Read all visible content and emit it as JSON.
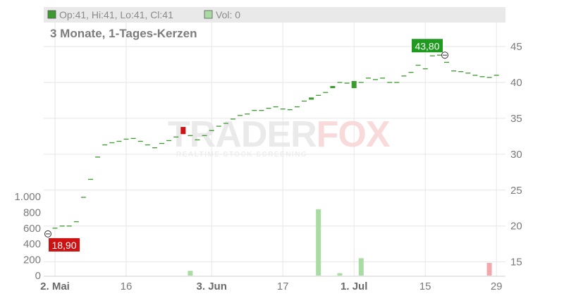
{
  "legend": {
    "ohlc_text": "Op:41, Hi:41, Lo:41, Cl:41",
    "vol_text": "Vol: 0",
    "ohlc_color": "#3c9a2e",
    "vol_color": "#a9dca2"
  },
  "watermark": {
    "part1": "TRADER",
    "part2": "FOX",
    "sub": "REALTIME STOCK SCREENING"
  },
  "chart_data": {
    "type": "candlestick",
    "subtitle": "3 Monate, 1-Tages-Kerzen",
    "price_axis": {
      "ticks": [
        15,
        20,
        25,
        30,
        35,
        40,
        45
      ],
      "labels": [
        "15",
        "20",
        "25",
        "30",
        "35",
        "40",
        "45"
      ],
      "range": [
        13,
        50.5
      ]
    },
    "volume_axis": {
      "ticks": [
        0,
        200,
        400,
        600,
        800,
        1000
      ],
      "labels": [
        "0",
        "200",
        "400",
        "600",
        "800",
        "1.000"
      ],
      "range": [
        0,
        1000
      ]
    },
    "x_labels": [
      {
        "text": "2. Mai",
        "i": 0,
        "bold": true
      },
      {
        "text": "16",
        "i": 10,
        "bold": false
      },
      {
        "text": "3. Jun",
        "i": 22,
        "bold": true
      },
      {
        "text": "17",
        "i": 32,
        "bold": false
      },
      {
        "text": "1. Jul",
        "i": 42,
        "bold": true
      },
      {
        "text": "15",
        "i": 52,
        "bold": false
      },
      {
        "text": "29",
        "i": 62,
        "bold": false
      }
    ],
    "candles": [
      {
        "o": 19.7,
        "c": 19.7
      },
      {
        "o": 20.0,
        "c": 20.0
      },
      {
        "o": 20.0,
        "c": 20.0
      },
      {
        "o": 20.6,
        "c": 20.6
      },
      {
        "o": 24.0,
        "c": 24.0
      },
      {
        "o": 26.5,
        "c": 26.5
      },
      {
        "o": 29.6,
        "c": 29.6
      },
      {
        "o": 31.3,
        "c": 31.3
      },
      {
        "o": 31.6,
        "c": 31.6
      },
      {
        "o": 31.8,
        "c": 31.8
      },
      {
        "o": 32.1,
        "c": 32.1
      },
      {
        "o": 32.2,
        "c": 32.2
      },
      {
        "o": 31.8,
        "c": 31.8
      },
      {
        "o": 31.3,
        "c": 31.3
      },
      {
        "o": 30.9,
        "c": 30.9
      },
      {
        "o": 31.5,
        "c": 31.5
      },
      {
        "o": 31.9,
        "c": 31.9
      },
      {
        "o": 32.4,
        "c": 32.4
      },
      {
        "o": 33.8,
        "c": 32.8
      },
      {
        "o": 32.6,
        "c": 32.6
      },
      {
        "o": 32.0,
        "c": 32.0
      },
      {
        "o": 32.6,
        "c": 32.6
      },
      {
        "o": 33.3,
        "c": 33.3
      },
      {
        "o": 33.9,
        "c": 33.9
      },
      {
        "o": 34.3,
        "c": 34.3
      },
      {
        "o": 34.9,
        "c": 34.9
      },
      {
        "o": 35.4,
        "c": 35.4
      },
      {
        "o": 35.6,
        "c": 35.6
      },
      {
        "o": 36.1,
        "c": 36.1
      },
      {
        "o": 36.1,
        "c": 36.1
      },
      {
        "o": 36.4,
        "c": 36.4
      },
      {
        "o": 36.6,
        "c": 36.6
      },
      {
        "o": 36.3,
        "c": 36.3
      },
      {
        "o": 36.2,
        "c": 36.2
      },
      {
        "o": 36.6,
        "c": 36.6
      },
      {
        "o": 37.4,
        "c": 37.4
      },
      {
        "o": 37.6,
        "c": 37.9
      },
      {
        "o": 38.2,
        "c": 38.2
      },
      {
        "o": 38.6,
        "c": 38.6
      },
      {
        "o": 39.2,
        "c": 39.5
      },
      {
        "o": 40.0,
        "c": 40.0
      },
      {
        "o": 39.9,
        "c": 39.9
      },
      {
        "o": 39.2,
        "c": 40.2
      },
      {
        "o": 40.0,
        "c": 40.0
      },
      {
        "o": 40.6,
        "c": 40.6
      },
      {
        "o": 40.4,
        "c": 40.4
      },
      {
        "o": 40.6,
        "c": 40.6
      },
      {
        "o": 40.0,
        "c": 40.0
      },
      {
        "o": 40.0,
        "c": 40.0
      },
      {
        "o": 40.9,
        "c": 40.9
      },
      {
        "o": 41.4,
        "c": 41.4
      },
      {
        "o": 42.4,
        "c": 42.4
      },
      {
        "o": 41.9,
        "c": 41.9
      },
      {
        "o": 43.7,
        "c": 43.7
      },
      {
        "o": 43.8,
        "c": 43.8
      },
      {
        "o": 42.8,
        "c": 42.8
      },
      {
        "o": 41.6,
        "c": 41.6
      },
      {
        "o": 41.5,
        "c": 41.5
      },
      {
        "o": 41.3,
        "c": 41.3
      },
      {
        "o": 41.0,
        "c": 41.0
      },
      {
        "o": 40.8,
        "c": 40.8
      },
      {
        "o": 40.7,
        "c": 40.7
      },
      {
        "o": 41.0,
        "c": 41.0
      }
    ],
    "volume": [
      {
        "i": 19,
        "v": 60,
        "color": "#a9dca2"
      },
      {
        "i": 37,
        "v": 840,
        "color": "#a9dca2"
      },
      {
        "i": 40,
        "v": 30,
        "color": "#a9dca2"
      },
      {
        "i": 43,
        "v": 220,
        "color": "#a9dca2"
      },
      {
        "i": 61,
        "v": 160,
        "color": "#f2a7ad"
      }
    ],
    "markers": [
      {
        "text": "18,90",
        "i": 0,
        "price": 18.9,
        "color": "#cc1212",
        "side": "below"
      },
      {
        "text": "43,80",
        "i": 54,
        "price": 43.8,
        "color": "#1e9a1e",
        "side": "above"
      }
    ]
  }
}
